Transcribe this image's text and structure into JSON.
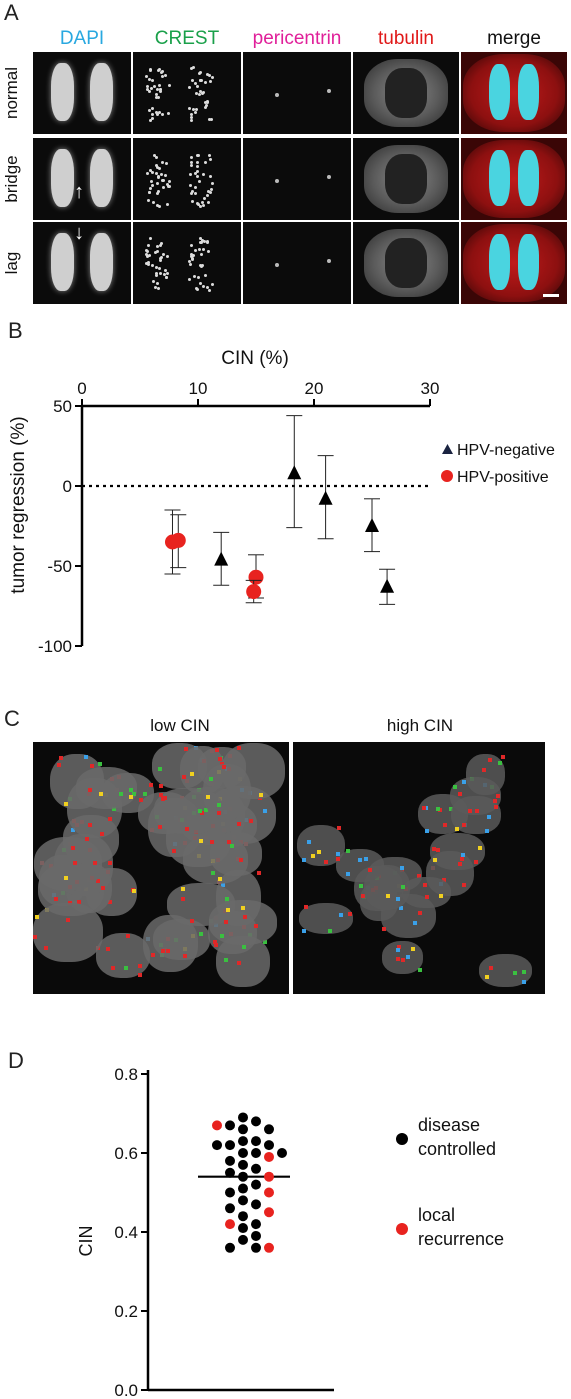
{
  "panels": {
    "a": {
      "letter": "A",
      "columns": [
        {
          "label": "DAPI",
          "color": "#29a8e0"
        },
        {
          "label": "CREST",
          "color": "#1aa04a"
        },
        {
          "label": "pericentrin",
          "color": "#e0209a"
        },
        {
          "label": "tubulin",
          "color": "#e01818"
        },
        {
          "label": "merge",
          "color": "#111111"
        }
      ],
      "rows": [
        "normal",
        "bridge",
        "lag"
      ]
    },
    "b": {
      "letter": "B",
      "chart_data": {
        "type": "scatter",
        "xlabel": "CIN (%)",
        "ylabel": "tumor regression (%)",
        "xlim": [
          0,
          30
        ],
        "ylim": [
          -100,
          50
        ],
        "x_ticks": [
          "0",
          "10",
          "20",
          "30"
        ],
        "y_ticks": [
          "50",
          "0",
          "-50",
          "-100"
        ],
        "x_axis_position": "top",
        "reference_line_y": 0,
        "legend_position": "right",
        "series": [
          {
            "name": "HPV-negative",
            "marker": "triangle",
            "color": "#000000",
            "legend_color": "#1a2340",
            "points": [
              {
                "x": 12,
                "y": -46,
                "err_low": -62,
                "err_high": -29
              },
              {
                "x": 18.3,
                "y": 8,
                "err_low": -26,
                "err_high": 44
              },
              {
                "x": 21,
                "y": -8,
                "err_low": -33,
                "err_high": 19
              },
              {
                "x": 25,
                "y": -25,
                "err_low": -41,
                "err_high": -8
              },
              {
                "x": 26.3,
                "y": -63,
                "err_low": -74,
                "err_high": -52
              }
            ]
          },
          {
            "name": "HPV-positive",
            "marker": "circle",
            "color": "#e8231f",
            "points": [
              {
                "x": 7.8,
                "y": -35,
                "err_low": -55,
                "err_high": -15
              },
              {
                "x": 8.3,
                "y": -34,
                "err_low": -51,
                "err_high": -18
              },
              {
                "x": 15,
                "y": -57,
                "err_low": -70,
                "err_high": -43
              },
              {
                "x": 14.8,
                "y": -66,
                "err_low": -73,
                "err_high": -59
              }
            ]
          }
        ]
      }
    },
    "c": {
      "letter": "C",
      "images": [
        {
          "label": "low CIN"
        },
        {
          "label": "high CIN"
        }
      ]
    },
    "d": {
      "letter": "D",
      "chart_data": {
        "type": "scatter",
        "ylabel": "CIN",
        "ylim": [
          0.0,
          0.8
        ],
        "y_ticks": [
          "0.8",
          "0.6",
          "0.4",
          "0.2",
          "0.0"
        ],
        "median": 0.54,
        "legend_position": "right",
        "series": [
          {
            "name": "disease controlled",
            "color": "#000000",
            "values": [
              0.69,
              0.68,
              0.67,
              0.66,
              0.66,
              0.63,
              0.63,
              0.62,
              0.62,
              0.62,
              0.6,
              0.6,
              0.6,
              0.58,
              0.57,
              0.56,
              0.55,
              0.54,
              0.52,
              0.51,
              0.5,
              0.48,
              0.47,
              0.46,
              0.44,
              0.42,
              0.41,
              0.39,
              0.38,
              0.36,
              0.36
            ]
          },
          {
            "name": "local recurrence",
            "color": "#e8231f",
            "values": [
              0.67,
              0.59,
              0.54,
              0.5,
              0.45,
              0.42,
              0.36
            ]
          }
        ]
      }
    }
  }
}
